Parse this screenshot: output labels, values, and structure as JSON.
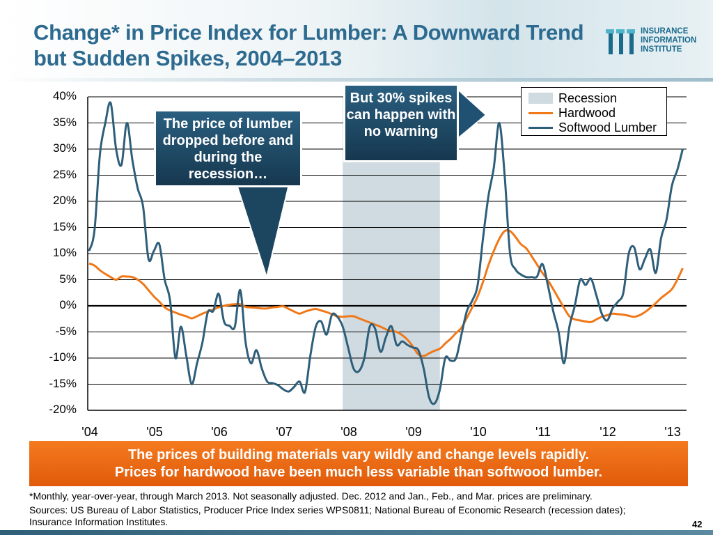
{
  "title": "Change* in Price Index for Lumber: A Downward Trend but Sudden Spikes, 2004–2013",
  "logo": {
    "lines": [
      "INSURANCE",
      "INFORMATION",
      "INSTITUTE"
    ],
    "color": "#1a6a8c"
  },
  "callouts": {
    "left": "The price of lumber dropped before and during the recession…",
    "right": "But 30% spikes can happen with no warning"
  },
  "banner": {
    "line1": "The prices of building materials vary wildly and change levels rapidly.",
    "line2": "Prices for hardwood have been much less variable than softwood lumber."
  },
  "footnote": "*Monthly, year-over-year, through March 2013. Not seasonally adjusted. Dec. 2012 and Jan., Feb., and Mar. prices are preliminary.",
  "sources": "Sources: US Bureau of Labor Statistics, Producer Price Index series WPS0811; National Bureau of Economic Research (recession dates); Insurance Information Institutes.",
  "page_number": "42",
  "chart_data": {
    "type": "line",
    "xlabel": "",
    "ylabel": "",
    "x_start": "2004-01",
    "x_end": "2013-03",
    "frequency": "monthly",
    "x_tick_labels": [
      "'04",
      "'05",
      "'06",
      "'07",
      "'08",
      "'09",
      "'10",
      "'11",
      "'12",
      "'13"
    ],
    "y_tick_labels": [
      "40%",
      "35%",
      "30%",
      "25%",
      "20%",
      "15%",
      "10%",
      "5%",
      "0%",
      "-5%",
      "-10%",
      "-15%",
      "-20%"
    ],
    "ylim": [
      -20,
      40
    ],
    "grid": true,
    "legend_placement": "top-right",
    "recession": {
      "label": "Recession",
      "start": "2007-12",
      "end": "2009-06",
      "color": "#cfdbe1"
    },
    "series": [
      {
        "name": "Hardwood",
        "color": "#f07818",
        "values": [
          8.1,
          7.7,
          6.8,
          6.1,
          5.5,
          5,
          5.6,
          5.6,
          5.5,
          5,
          4.2,
          3,
          1.8,
          0.8,
          -0.3,
          -0.9,
          -1.3,
          -1.7,
          -2,
          -2.4,
          -2,
          -1.5,
          -1.1,
          -0.7,
          -0.3,
          0,
          0.2,
          0.3,
          0.3,
          -0.2,
          -0.3,
          -0.4,
          -0.5,
          -0.5,
          -0.3,
          -0.2,
          -0.1,
          -0.6,
          -1.1,
          -1.5,
          -1.1,
          -0.8,
          -0.6,
          -0.9,
          -1.2,
          -1.6,
          -2,
          -2.1,
          -2,
          -2,
          -2.4,
          -2.8,
          -3.2,
          -3.6,
          -4,
          -4.5,
          -4.8,
          -5,
          -5.6,
          -6.5,
          -7.8,
          -9.3,
          -9.6,
          -9.1,
          -8.6,
          -8.2,
          -7.2,
          -6.3,
          -5.2,
          -4.2,
          -2.3,
          -0.3,
          1.8,
          4.6,
          7.8,
          10.5,
          12.8,
          14.3,
          14.3,
          13.2,
          11.8,
          11,
          9.5,
          7.9,
          6.3,
          4.9,
          3.2,
          1.4,
          -0.4,
          -2,
          -2.6,
          -2.8,
          -3,
          -3.1,
          -2.6,
          -2.1,
          -1.8,
          -1.5,
          -1.6,
          -1.7,
          -1.9,
          -2.1,
          -1.8,
          -1.2,
          -0.4,
          0.5,
          1.5,
          2.3,
          3.2,
          5,
          7.2
        ]
      },
      {
        "name": "Softwood Lumber",
        "color": "#2e5e7a",
        "values": [
          10.5,
          14.5,
          29,
          35,
          38.8,
          30,
          27,
          35,
          28,
          22.5,
          19,
          9,
          10.5,
          11.8,
          5,
          1,
          -10,
          -4,
          -9.5,
          -15,
          -11,
          -7,
          -1.2,
          -1,
          2.3,
          -3,
          -3.8,
          -4,
          3,
          -7,
          -11,
          -8.5,
          -12,
          -14.5,
          -14.8,
          -15.2,
          -16,
          -16.4,
          -15.5,
          -14.5,
          -16.5,
          -9.5,
          -4,
          -3,
          -5.5,
          -1.7,
          -2.1,
          -4,
          -8,
          -12,
          -12.5,
          -10,
          -4,
          -4.4,
          -8.8,
          -6,
          -3.9,
          -7.5,
          -6.8,
          -7.5,
          -8,
          -8.5,
          -12,
          -17.5,
          -18.7,
          -16,
          -10,
          -10.5,
          -10,
          -5.5,
          -1,
          1,
          4,
          13,
          21,
          26.5,
          35,
          25,
          10,
          7,
          6,
          5.5,
          5.5,
          5.6,
          8,
          4,
          -1,
          -5,
          -11,
          -4,
          0,
          5,
          4,
          5.2,
          2,
          -1.5,
          -2.8,
          -0.5,
          0.8,
          2.5,
          10,
          11.2,
          7,
          9,
          10.8,
          6.3,
          13,
          16.5,
          23,
          26,
          30
        ]
      }
    ]
  }
}
